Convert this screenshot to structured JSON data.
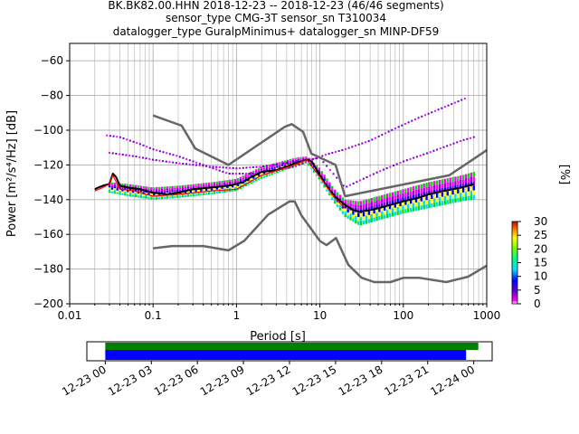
{
  "chart_data": [
    {
      "type": "line",
      "subtype": "ppsd",
      "title_lines": [
        "BK.BK82.00.HHN   2018-12-23 -- 2018-12-23  (46/46 segments)",
        "sensor_type CMG-3T sensor_sn T310034",
        "datalogger_type GuralpMinimus+ datalogger_sn MINP-DF59"
      ],
      "xlabel": "Period [s]",
      "ylabel": "Power [m²/s⁴/Hz] [dB]",
      "xscale": "log",
      "xlim": [
        0.01,
        1000
      ],
      "ylim": [
        -200,
        -50
      ],
      "xticks": [
        {
          "value": 0.01,
          "label": "0.01"
        },
        {
          "value": 0.1,
          "label": "0.1"
        },
        {
          "value": 1,
          "label": "1"
        },
        {
          "value": 10,
          "label": "10"
        },
        {
          "value": 100,
          "label": "100"
        },
        {
          "value": 1000,
          "label": "1000"
        }
      ],
      "yticks": [
        -200,
        -180,
        -160,
        -140,
        -120,
        -100,
        -80,
        -60
      ],
      "colorbar": {
        "label": "[%]",
        "range": [
          0,
          30
        ],
        "ticks": [
          0,
          5,
          10,
          15,
          20,
          25,
          30
        ]
      },
      "series": [
        {
          "name": "new_high_noise_model",
          "color": "#666666",
          "x": [
            0.1,
            0.22,
            0.32,
            0.8,
            3.8,
            4.6,
            6.3,
            7.9,
            15.4,
            20,
            354.8,
            1000
          ],
          "y": [
            -91.5,
            -97.4,
            -110.5,
            -120,
            -98,
            -96.5,
            -101,
            -113.5,
            -120,
            -138,
            -126,
            -111.5
          ]
        },
        {
          "name": "new_low_noise_model",
          "color": "#666666",
          "x": [
            0.1,
            0.17,
            0.4,
            0.8,
            1.24,
            2.4,
            4.3,
            5.0,
            6.0,
            10.0,
            12.0,
            15.6,
            21.9,
            31.6,
            45.0,
            70.0,
            101.0,
            154.0,
            328.0,
            600.0,
            1000.0
          ],
          "y": [
            -168,
            -166.7,
            -166.7,
            -169.2,
            -163.7,
            -148.6,
            -141.1,
            -141.1,
            -149,
            -163.8,
            -166.2,
            -162.1,
            -177.5,
            -185,
            -187.5,
            -187.5,
            -185,
            -185,
            -187.5,
            -184.4,
            -178
          ]
        },
        {
          "name": "mean",
          "color": "#000000",
          "x": [
            0.02,
            0.022,
            0.025,
            0.03,
            0.033,
            0.036,
            0.04,
            0.05,
            0.07,
            0.1,
            0.15,
            0.2,
            0.3,
            0.5,
            0.8,
            1.2,
            1.5,
            2,
            3,
            4,
            5,
            6,
            7,
            8,
            10,
            12,
            15,
            20,
            25,
            30,
            40,
            50,
            70,
            100,
            150,
            200,
            300,
            500,
            700
          ],
          "y": [
            -134,
            -133,
            -132,
            -131,
            -125,
            -127,
            -132,
            -133,
            -134,
            -136,
            -137,
            -136,
            -134,
            -133,
            -132,
            -130,
            -127,
            -124,
            -123,
            -121,
            -119,
            -118,
            -117,
            -118,
            -126,
            -132,
            -138,
            -143,
            -146,
            -147,
            -146,
            -145,
            -143,
            -141,
            -139,
            -137,
            -135,
            -133,
            -131
          ]
        },
        {
          "name": "mode",
          "color": "#ff0000",
          "x": [
            0.02,
            0.025,
            0.03,
            0.033,
            0.04,
            0.06,
            0.1,
            0.2,
            0.5,
            1,
            2,
            5,
            7,
            10,
            15,
            20
          ],
          "y": [
            -135,
            -133,
            -131,
            -126,
            -134,
            -135,
            -138,
            -137,
            -135,
            -134,
            -126,
            -120,
            -117,
            -127,
            -139,
            -145
          ]
        }
      ],
      "density_bands": [
        {
          "name": "lower-band",
          "x": [
            0.03,
            0.05,
            0.1,
            0.2,
            0.5,
            1,
            2,
            5,
            7,
            10,
            15,
            20,
            30,
            50,
            100,
            200,
            500,
            700
          ],
          "y": [
            -136,
            -138,
            -140,
            -139,
            -137,
            -135,
            -128,
            -121,
            -119,
            -129,
            -142,
            -150,
            -155,
            -152,
            -148,
            -145,
            -141,
            -140
          ]
        },
        {
          "name": "upper-band",
          "x": [
            0.03,
            0.05,
            0.1,
            0.2,
            0.5,
            1,
            2,
            5,
            7,
            10,
            15,
            20,
            30,
            50,
            100,
            200,
            500,
            700
          ],
          "y": [
            -130,
            -131,
            -133,
            -132,
            -130,
            -128,
            -121,
            -116,
            -115,
            -122,
            -134,
            -140,
            -141,
            -138,
            -134,
            -130,
            -126,
            -124
          ]
        },
        {
          "name": "upper-scatter",
          "x": [
            0.028,
            0.04,
            0.07,
            0.1,
            0.2,
            0.4,
            0.8,
            1.5,
            3,
            5,
            8,
            12,
            20,
            40,
            80,
            150,
            300,
            600
          ],
          "y": [
            -103,
            -104,
            -108,
            -111,
            -115,
            -120,
            -125,
            -125,
            -123,
            -121,
            -117,
            -114,
            -111,
            -106,
            -99,
            -93,
            -87,
            -81
          ]
        },
        {
          "name": "mid-scatter",
          "x": [
            0.03,
            0.06,
            0.1,
            0.2,
            0.5,
            1,
            2,
            5,
            10,
            20,
            50,
            100,
            200,
            500,
            700
          ],
          "y": [
            -113,
            -115,
            -117,
            -119,
            -121,
            -122,
            -121,
            -118,
            -116,
            -133,
            -124,
            -118,
            -113,
            -106,
            -104
          ]
        }
      ]
    },
    {
      "type": "timeline",
      "ticks": [
        "12-23 00",
        "12-23 03",
        "12-23 06",
        "12-23 09",
        "12-23 12",
        "12-23 15",
        "12-23 18",
        "12-23 21",
        "12-24 00"
      ],
      "range_hours": [
        -1.2,
        25.2
      ],
      "bars": [
        {
          "name": "data-coverage",
          "color": "#008000",
          "start_hour": 0,
          "end_hour": 24.3
        },
        {
          "name": "psd-coverage",
          "color": "#0000ff",
          "start_hour": 0,
          "end_hour": 23.5
        }
      ]
    }
  ]
}
